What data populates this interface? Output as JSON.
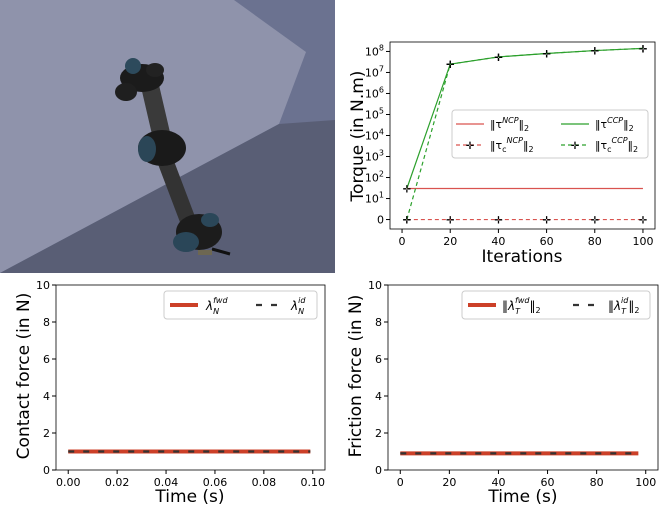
{
  "chart_data": [
    {
      "type": "line",
      "xlabel": "Iterations",
      "ylabel": "Torque (in N.m)",
      "yscale": "symlog",
      "xlim": [
        -5,
        105
      ],
      "xticks": [
        0,
        20,
        40,
        60,
        80,
        100
      ],
      "yticks": [
        {
          "value": 0,
          "label": "0"
        },
        {
          "value": 1,
          "label": "10^1"
        },
        {
          "value": 2,
          "label": "10^2"
        },
        {
          "value": 3,
          "label": "10^3"
        },
        {
          "value": 4,
          "label": "10^4"
        },
        {
          "value": 5,
          "label": "10^5"
        },
        {
          "value": 6,
          "label": "10^6"
        },
        {
          "value": 7,
          "label": "10^7"
        },
        {
          "value": 8,
          "label": "10^8"
        }
      ],
      "legend_position": "center-right",
      "series": [
        {
          "name": "‖τ^NCP‖2",
          "color": "#d9534f",
          "dash": false,
          "marker": false,
          "x": [
            2,
            20,
            40,
            60,
            80,
            100
          ],
          "y": [
            30,
            30,
            30,
            30,
            30,
            30
          ]
        },
        {
          "name": "‖τc^NCP‖2",
          "color": "#d9534f",
          "dash": true,
          "marker": true,
          "x": [
            2,
            20,
            40,
            60,
            80,
            100
          ],
          "y": [
            0,
            0,
            0,
            0,
            0,
            0
          ]
        },
        {
          "name": "‖τ^CCP‖2",
          "color": "#2ca02c",
          "dash": false,
          "marker": true,
          "x": [
            2,
            20,
            40,
            60,
            80,
            100
          ],
          "y": [
            30,
            25000000,
            55000000,
            80000000,
            110000000,
            140000000
          ]
        },
        {
          "name": "‖τc^CCP‖2",
          "color": "#2ca02c",
          "dash": true,
          "marker": true,
          "x": [
            2,
            20,
            40,
            60,
            80,
            100
          ],
          "y": [
            0,
            25000000,
            55000000,
            80000000,
            110000000,
            140000000
          ]
        }
      ]
    },
    {
      "type": "line",
      "xlabel": "Time (s)",
      "ylabel": "Contact force (in N)",
      "xlim": [
        -0.005,
        0.105
      ],
      "ylim": [
        0,
        10
      ],
      "xticks": [
        "0.00",
        "0.02",
        "0.04",
        "0.06",
        "0.08",
        "0.10"
      ],
      "yticks": [
        0,
        2,
        4,
        6,
        8,
        10
      ],
      "legend_position": "top-right",
      "series": [
        {
          "name": "λN^fwd",
          "color": "#cc4028",
          "dash": false,
          "x": [
            0,
            0.099
          ],
          "y": [
            1.0,
            1.0
          ]
        },
        {
          "name": "λN^id",
          "color": "#333333",
          "dash": true,
          "x": [
            0,
            0.099
          ],
          "y": [
            1.0,
            1.0
          ]
        }
      ]
    },
    {
      "type": "line",
      "xlabel": "Time (s)",
      "ylabel": "Friction force (in N)",
      "xlim": [
        -5,
        105
      ],
      "ylim": [
        0,
        10
      ],
      "xticks": [
        "0",
        "20",
        "40",
        "60",
        "80",
        "100"
      ],
      "yticks": [
        0,
        2,
        4,
        6,
        8,
        10
      ],
      "legend_position": "top-right",
      "series": [
        {
          "name": "‖λT^fwd‖2",
          "color": "#cc4028",
          "dash": false,
          "x": [
            0,
            97
          ],
          "y": [
            0.9,
            0.9
          ]
        },
        {
          "name": "‖λT^id‖2",
          "color": "#333333",
          "dash": true,
          "x": [
            0,
            97
          ],
          "y": [
            0.9,
            0.9
          ]
        }
      ]
    }
  ]
}
